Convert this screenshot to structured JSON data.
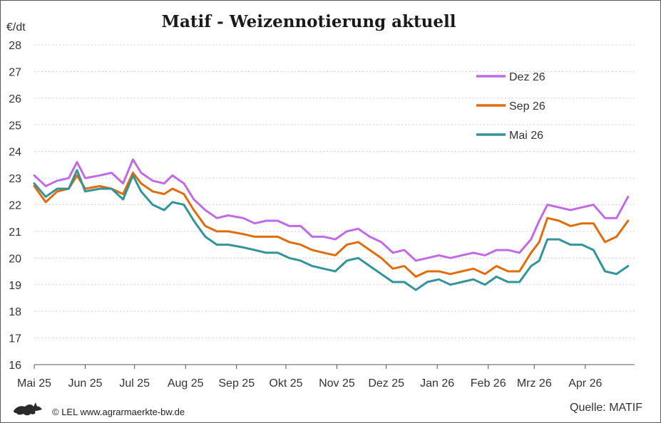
{
  "chart_data": {
    "type": "line",
    "title": "Matif - Weizennotierung aktuell",
    "ylabel": "€/dt",
    "ylim": [
      16,
      28
    ],
    "yticks": [
      16,
      17,
      18,
      19,
      20,
      21,
      22,
      23,
      24,
      25,
      26,
      27,
      28
    ],
    "x_month_labels": [
      "Mai 25",
      "Jun 25",
      "Jul 25",
      "Aug 25",
      "Sep 25",
      "Okt 25",
      "Nov 25",
      "Dez 25",
      "Jan 26",
      "Feb 26",
      "Mrz 26",
      "Apr 26"
    ],
    "x_month_starts": [
      "2025-05-01",
      "2025-06-01",
      "2025-07-01",
      "2025-08-01",
      "2025-09-01",
      "2025-10-01",
      "2025-11-01",
      "2025-12-01",
      "2026-01-01",
      "2026-02-01",
      "2026-03-01",
      "2026-04-01"
    ],
    "xlim": [
      "2025-05-01",
      "2026-05-01"
    ],
    "grid": true,
    "legend_position": "top-right",
    "series": [
      {
        "name": "Dez 26",
        "color": "#c16ae6",
        "points": [
          [
            "2025-05-01",
            23.1
          ],
          [
            "2025-05-08",
            22.7
          ],
          [
            "2025-05-15",
            22.9
          ],
          [
            "2025-05-22",
            23.0
          ],
          [
            "2025-05-27",
            23.6
          ],
          [
            "2025-06-01",
            23.0
          ],
          [
            "2025-06-10",
            23.1
          ],
          [
            "2025-06-17",
            23.2
          ],
          [
            "2025-06-24",
            22.8
          ],
          [
            "2025-06-30",
            23.7
          ],
          [
            "2025-07-05",
            23.2
          ],
          [
            "2025-07-12",
            22.9
          ],
          [
            "2025-07-19",
            22.8
          ],
          [
            "2025-07-24",
            23.1
          ],
          [
            "2025-07-31",
            22.8
          ],
          [
            "2025-08-06",
            22.2
          ],
          [
            "2025-08-13",
            21.8
          ],
          [
            "2025-08-20",
            21.5
          ],
          [
            "2025-08-27",
            21.6
          ],
          [
            "2025-09-05",
            21.5
          ],
          [
            "2025-09-12",
            21.3
          ],
          [
            "2025-09-19",
            21.4
          ],
          [
            "2025-09-26",
            21.4
          ],
          [
            "2025-10-03",
            21.2
          ],
          [
            "2025-10-10",
            21.2
          ],
          [
            "2025-10-17",
            20.8
          ],
          [
            "2025-10-24",
            20.8
          ],
          [
            "2025-10-31",
            20.7
          ],
          [
            "2025-11-07",
            21.0
          ],
          [
            "2025-11-14",
            21.1
          ],
          [
            "2025-11-21",
            20.8
          ],
          [
            "2025-11-28",
            20.6
          ],
          [
            "2025-12-05",
            20.2
          ],
          [
            "2025-12-12",
            20.3
          ],
          [
            "2025-12-19",
            19.9
          ],
          [
            "2025-12-26",
            20.0
          ],
          [
            "2026-01-02",
            20.1
          ],
          [
            "2026-01-09",
            20.0
          ],
          [
            "2026-01-16",
            20.1
          ],
          [
            "2026-01-23",
            20.2
          ],
          [
            "2026-01-30",
            20.1
          ],
          [
            "2026-02-06",
            20.3
          ],
          [
            "2026-02-13",
            20.3
          ],
          [
            "2026-02-20",
            20.2
          ],
          [
            "2026-02-27",
            20.7
          ],
          [
            "2026-03-04",
            21.4
          ],
          [
            "2026-03-09",
            22.0
          ],
          [
            "2026-03-16",
            21.9
          ],
          [
            "2026-03-23",
            21.8
          ],
          [
            "2026-03-30",
            21.9
          ],
          [
            "2026-04-06",
            22.0
          ],
          [
            "2026-04-13",
            21.5
          ],
          [
            "2026-04-20",
            21.5
          ],
          [
            "2026-04-27",
            22.3
          ]
        ]
      },
      {
        "name": "Sep 26",
        "color": "#e36c0a",
        "points": [
          [
            "2025-05-01",
            22.7
          ],
          [
            "2025-05-08",
            22.1
          ],
          [
            "2025-05-15",
            22.5
          ],
          [
            "2025-05-22",
            22.6
          ],
          [
            "2025-05-27",
            23.1
          ],
          [
            "2025-06-01",
            22.6
          ],
          [
            "2025-06-10",
            22.7
          ],
          [
            "2025-06-17",
            22.6
          ],
          [
            "2025-06-24",
            22.4
          ],
          [
            "2025-06-30",
            23.2
          ],
          [
            "2025-07-05",
            22.8
          ],
          [
            "2025-07-12",
            22.5
          ],
          [
            "2025-07-19",
            22.4
          ],
          [
            "2025-07-24",
            22.6
          ],
          [
            "2025-07-31",
            22.4
          ],
          [
            "2025-08-06",
            21.8
          ],
          [
            "2025-08-13",
            21.2
          ],
          [
            "2025-08-20",
            21.0
          ],
          [
            "2025-08-27",
            21.0
          ],
          [
            "2025-09-05",
            20.9
          ],
          [
            "2025-09-12",
            20.8
          ],
          [
            "2025-09-19",
            20.8
          ],
          [
            "2025-09-26",
            20.8
          ],
          [
            "2025-10-03",
            20.6
          ],
          [
            "2025-10-10",
            20.5
          ],
          [
            "2025-10-17",
            20.3
          ],
          [
            "2025-10-24",
            20.2
          ],
          [
            "2025-10-31",
            20.1
          ],
          [
            "2025-11-07",
            20.5
          ],
          [
            "2025-11-14",
            20.6
          ],
          [
            "2025-11-21",
            20.3
          ],
          [
            "2025-11-28",
            20.0
          ],
          [
            "2025-12-05",
            19.6
          ],
          [
            "2025-12-12",
            19.7
          ],
          [
            "2025-12-19",
            19.3
          ],
          [
            "2025-12-26",
            19.5
          ],
          [
            "2026-01-02",
            19.5
          ],
          [
            "2026-01-09",
            19.4
          ],
          [
            "2026-01-16",
            19.5
          ],
          [
            "2026-01-23",
            19.6
          ],
          [
            "2026-01-30",
            19.4
          ],
          [
            "2026-02-06",
            19.7
          ],
          [
            "2026-02-13",
            19.5
          ],
          [
            "2026-02-20",
            19.5
          ],
          [
            "2026-02-27",
            20.2
          ],
          [
            "2026-03-04",
            20.6
          ],
          [
            "2026-03-09",
            21.5
          ],
          [
            "2026-03-16",
            21.4
          ],
          [
            "2026-03-23",
            21.2
          ],
          [
            "2026-03-30",
            21.3
          ],
          [
            "2026-04-06",
            21.3
          ],
          [
            "2026-04-13",
            20.6
          ],
          [
            "2026-04-20",
            20.8
          ],
          [
            "2026-04-27",
            21.4
          ]
        ]
      },
      {
        "name": "Mai 26",
        "color": "#31949b",
        "points": [
          [
            "2025-05-01",
            22.8
          ],
          [
            "2025-05-08",
            22.3
          ],
          [
            "2025-05-15",
            22.6
          ],
          [
            "2025-05-22",
            22.6
          ],
          [
            "2025-05-27",
            23.3
          ],
          [
            "2025-06-01",
            22.5
          ],
          [
            "2025-06-10",
            22.6
          ],
          [
            "2025-06-17",
            22.6
          ],
          [
            "2025-06-24",
            22.2
          ],
          [
            "2025-06-30",
            23.1
          ],
          [
            "2025-07-05",
            22.5
          ],
          [
            "2025-07-12",
            22.0
          ],
          [
            "2025-07-19",
            21.8
          ],
          [
            "2025-07-24",
            22.1
          ],
          [
            "2025-07-31",
            22.0
          ],
          [
            "2025-08-06",
            21.4
          ],
          [
            "2025-08-13",
            20.8
          ],
          [
            "2025-08-20",
            20.5
          ],
          [
            "2025-08-27",
            20.5
          ],
          [
            "2025-09-05",
            20.4
          ],
          [
            "2025-09-12",
            20.3
          ],
          [
            "2025-09-19",
            20.2
          ],
          [
            "2025-09-26",
            20.2
          ],
          [
            "2025-10-03",
            20.0
          ],
          [
            "2025-10-10",
            19.9
          ],
          [
            "2025-10-17",
            19.7
          ],
          [
            "2025-10-24",
            19.6
          ],
          [
            "2025-10-31",
            19.5
          ],
          [
            "2025-11-07",
            19.9
          ],
          [
            "2025-11-14",
            20.0
          ],
          [
            "2025-11-21",
            19.7
          ],
          [
            "2025-11-28",
            19.4
          ],
          [
            "2025-12-05",
            19.1
          ],
          [
            "2025-12-12",
            19.1
          ],
          [
            "2025-12-19",
            18.8
          ],
          [
            "2025-12-26",
            19.1
          ],
          [
            "2026-01-02",
            19.2
          ],
          [
            "2026-01-09",
            19.0
          ],
          [
            "2026-01-16",
            19.1
          ],
          [
            "2026-01-23",
            19.2
          ],
          [
            "2026-01-30",
            19.0
          ],
          [
            "2026-02-06",
            19.3
          ],
          [
            "2026-02-13",
            19.1
          ],
          [
            "2026-02-20",
            19.1
          ],
          [
            "2026-02-27",
            19.7
          ],
          [
            "2026-03-04",
            19.9
          ],
          [
            "2026-03-09",
            20.7
          ],
          [
            "2026-03-16",
            20.7
          ],
          [
            "2026-03-23",
            20.5
          ],
          [
            "2026-03-30",
            20.5
          ],
          [
            "2026-04-06",
            20.3
          ],
          [
            "2026-04-13",
            19.5
          ],
          [
            "2026-04-20",
            19.4
          ],
          [
            "2026-04-27",
            19.7
          ]
        ]
      }
    ]
  },
  "footer": {
    "copyright": "© LEL www.agrarmaerkte-bw.de",
    "source": "Quelle: MATIF",
    "logo_icon": "lion-logo-icon"
  }
}
